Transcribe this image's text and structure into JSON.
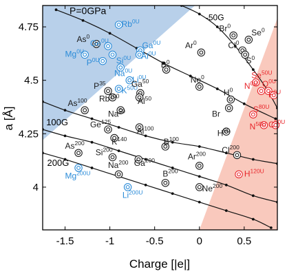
{
  "chart_data": {
    "type": "scatter",
    "xlabel": "Charge [|e|]",
    "ylabel_main": "a",
    "ylabel_unit": "[Å]",
    "xlim": [
      -1.75,
      0.87
    ],
    "ylim": [
      3.8,
      4.85
    ],
    "xticks": [
      -1.5,
      -1,
      -0.5,
      0,
      0.5
    ],
    "xtick_labels": [
      "-1.5",
      "-1",
      "-0.5",
      "0",
      "0.5"
    ],
    "yticks": [
      4,
      4.25,
      4.5,
      4.75
    ],
    "ytick_labels": [
      "4",
      "4.25",
      "4.5",
      "4.75"
    ],
    "colors": {
      "black": "#1a1a1a",
      "blue": "#2a8bd8",
      "red": "#e8252a",
      "blue_region": "#b8d0ea",
      "red_region": "#f9c9bd"
    },
    "isobars": [
      {
        "name": "P=0GPa",
        "points": [
          [
            -1.6,
            4.83
          ],
          [
            -1.3,
            4.78
          ],
          [
            -1,
            4.72
          ],
          [
            -0.7,
            4.65
          ],
          [
            -0.4,
            4.58
          ],
          [
            -0.1,
            4.52
          ],
          [
            0.2,
            4.46
          ],
          [
            0.5,
            4.39
          ],
          [
            0.85,
            4.32
          ]
        ]
      },
      {
        "name": "-50G",
        "points": [
          [
            -0.2,
            4.85
          ],
          [
            0,
            4.81
          ],
          [
            0.2,
            4.75
          ],
          [
            0.4,
            4.66
          ],
          [
            0.6,
            4.55
          ],
          [
            0.75,
            4.46
          ],
          [
            0.87,
            4.37
          ]
        ]
      },
      {
        "name": "100G",
        "points": [
          [
            -1.75,
            4.4
          ],
          [
            -1.5,
            4.36
          ],
          [
            -1.2,
            4.32
          ],
          [
            -0.9,
            4.28
          ],
          [
            -0.6,
            4.24
          ],
          [
            -0.3,
            4.21
          ],
          [
            0,
            4.19
          ],
          [
            0.3,
            4.16
          ],
          [
            0.6,
            4.13
          ],
          [
            0.87,
            4.11
          ]
        ]
      },
      {
        "name": "",
        "points": [
          [
            -1.75,
            4.27
          ],
          [
            -1.5,
            4.24
          ],
          [
            -1.2,
            4.21
          ],
          [
            -0.9,
            4.17
          ],
          [
            -0.6,
            4.13
          ],
          [
            -0.3,
            4.09
          ],
          [
            0,
            4.05
          ],
          [
            0.3,
            4.01
          ],
          [
            0.6,
            3.96
          ],
          [
            0.87,
            3.93
          ]
        ]
      },
      {
        "name": "200G",
        "points": [
          [
            -1.75,
            4.16
          ],
          [
            -1.5,
            4.13
          ],
          [
            -1.2,
            4.09
          ],
          [
            -0.9,
            4.05
          ],
          [
            -0.6,
            4.01
          ],
          [
            -0.3,
            3.97
          ],
          [
            0,
            3.93
          ],
          [
            0.3,
            3.89
          ],
          [
            0.6,
            3.85
          ],
          [
            0.8,
            3.81
          ]
        ]
      }
    ],
    "curve_labels": [
      {
        "text": "P=0GPa",
        "x": -1.45,
        "y": 4.81,
        "size": 14
      },
      {
        "text": "-50G",
        "x": 0.07,
        "y": 4.78,
        "size": 12
      },
      {
        "text": "100G",
        "x": -1.71,
        "y": 4.29,
        "size": 13
      },
      {
        "text": "200G",
        "x": -1.7,
        "y": 4.1,
        "size": 13
      }
    ],
    "points": [
      {
        "element": "Rb",
        "sup": "0U",
        "x": -0.9,
        "y": 4.76,
        "color": "blue",
        "lx": -0.87,
        "ly": 4.75
      },
      {
        "element": "As",
        "sup": "0",
        "x": -1.15,
        "y": 4.67,
        "color": "black",
        "lx": -1.37,
        "ly": 4.68
      },
      {
        "element": "Ge",
        "sup": "0U",
        "x": -1.02,
        "y": 4.66,
        "color": "blue",
        "lx": -1.22,
        "ly": 4.66
      },
      {
        "element": "Ga",
        "sup": "0U",
        "x": -0.66,
        "y": 4.64,
        "color": "blue",
        "lx": -0.64,
        "ly": 4.65
      },
      {
        "element": "Mg",
        "sup": "0U",
        "x": -1.28,
        "y": 4.62,
        "color": "blue",
        "lx": -1.5,
        "ly": 4.61
      },
      {
        "element": "Si",
        "sup": "0U",
        "x": -0.97,
        "y": 4.62,
        "color": "blue",
        "lx": -0.93,
        "ly": 4.58
      },
      {
        "element": "Al",
        "sup": "0U",
        "x": -0.67,
        "y": 4.62,
        "color": "blue",
        "lx": -0.65,
        "ly": 4.6
      },
      {
        "element": "P",
        "sup": "0U",
        "x": -1.08,
        "y": 4.59,
        "color": "blue",
        "lx": -1.26,
        "ly": 4.57
      },
      {
        "element": "Na",
        "sup": "0U",
        "x": -0.88,
        "y": 4.56,
        "color": "blue",
        "lx": -0.95,
        "ly": 4.52
      },
      {
        "element": "Li",
        "sup": "0U",
        "x": -0.78,
        "y": 4.5,
        "color": "blue",
        "lx": -0.75,
        "ly": 4.49
      },
      {
        "element": "K",
        "sup": "50U",
        "x": -0.9,
        "y": 4.46,
        "color": "blue",
        "lx": -0.87,
        "ly": 4.44
      },
      {
        "element": "Br",
        "sup": "0",
        "x": 0.38,
        "y": 4.71,
        "color": "black",
        "lx": 0.22,
        "ly": 4.73
      },
      {
        "element": "Se",
        "sup": "0",
        "x": 0.55,
        "y": 4.69,
        "color": "black",
        "lx": 0.58,
        "ly": 4.71
      },
      {
        "element": "Cl",
        "sup": "0",
        "x": 0.48,
        "y": 4.64,
        "color": "black",
        "lx": 0.32,
        "ly": 4.65
      },
      {
        "element": "Ar",
        "sup": "0",
        "x": 0.02,
        "y": 4.63,
        "color": "black",
        "lx": -0.16,
        "ly": 4.65
      },
      {
        "element": "S",
        "sup": "0",
        "x": 0.51,
        "y": 4.62,
        "color": "black",
        "lx": 0.52,
        "ly": 4.58
      },
      {
        "element": "B",
        "sup": "0",
        "x": -0.37,
        "y": 4.55,
        "color": "black",
        "lx": -0.43,
        "ly": 4.56
      },
      {
        "element": "Ne",
        "sup": "0",
        "x": 0.0,
        "y": 4.47,
        "color": "black",
        "lx": -0.1,
        "ly": 4.49
      },
      {
        "element": "Ga",
        "sup": "50",
        "x": -0.66,
        "y": 4.44,
        "color": "black",
        "lx": -0.76,
        "ly": 4.47
      },
      {
        "element": "P",
        "sup": "35",
        "x": -1.02,
        "y": 4.45,
        "color": "black",
        "lx": -1.18,
        "ly": 4.46
      },
      {
        "element": "Rb",
        "sup": "100",
        "x": -0.97,
        "y": 4.42,
        "color": "black",
        "lx": -1.12,
        "ly": 4.4
      },
      {
        "element": "Al",
        "sup": "50",
        "x": -0.67,
        "y": 4.42,
        "color": "black",
        "lx": -0.69,
        "ly": 4.39
      },
      {
        "element": "As",
        "sup": "100",
        "x": -1.28,
        "y": 4.36,
        "color": "black",
        "lx": -1.47,
        "ly": 4.38
      },
      {
        "element": "Na",
        "sup": "50",
        "x": -0.88,
        "y": 4.36,
        "color": "black",
        "lx": -1.02,
        "ly": 4.33
      },
      {
        "element": "H",
        "sup": "0",
        "x": 0.35,
        "y": 4.41,
        "color": "black",
        "lx": 0.27,
        "ly": 4.43
      },
      {
        "element": "Br",
        "sup": "",
        "x": 0.33,
        "y": 4.37,
        "color": "black",
        "lx": 0.14,
        "ly": 4.33
      },
      {
        "element": "Ge",
        "sup": "125",
        "x": -1.02,
        "y": 4.27,
        "color": "black",
        "lx": -1.22,
        "ly": 4.28
      },
      {
        "element": "K",
        "sup": "140",
        "x": -0.95,
        "y": 4.23,
        "color": "black",
        "lx": -0.98,
        "ly": 4.2
      },
      {
        "element": "Al",
        "sup": "100",
        "x": -0.67,
        "y": 4.28,
        "color": "black",
        "lx": -0.7,
        "ly": 4.25
      },
      {
        "element": "H",
        "sup": "50",
        "x": 0.3,
        "y": 4.26,
        "color": "black",
        "lx": 0.2,
        "ly": 4.24
      },
      {
        "element": "As",
        "sup": "200",
        "x": -1.35,
        "y": 4.16,
        "color": "black",
        "lx": -1.5,
        "ly": 4.18
      },
      {
        "element": "Si",
        "sup": "200",
        "x": -0.97,
        "y": 4.14,
        "color": "black",
        "lx": -1.16,
        "ly": 4.15
      },
      {
        "element": "B",
        "sup": "100",
        "x": -0.38,
        "y": 4.19,
        "color": "black",
        "lx": -0.4,
        "ly": 4.2
      },
      {
        "element": "Ga",
        "sup": "200",
        "x": -0.68,
        "y": 4.13,
        "color": "black",
        "lx": -0.73,
        "ly": 4.1
      },
      {
        "element": "Na",
        "sup": "200",
        "x": -0.9,
        "y": 4.06,
        "color": "black",
        "lx": -1.02,
        "ly": 4.09
      },
      {
        "element": "Cl",
        "sup": "200",
        "x": 0.42,
        "y": 4.15,
        "color": "black",
        "lx": 0.25,
        "ly": 4.16
      },
      {
        "element": "Ar",
        "sup": "200",
        "x": 0.0,
        "y": 4.1,
        "color": "black",
        "lx": -0.13,
        "ly": 4.13
      },
      {
        "element": "B",
        "sup": "200",
        "x": -0.38,
        "y": 4.02,
        "color": "black",
        "lx": -0.41,
        "ly": 4.05
      },
      {
        "element": "Ne",
        "sup": "200",
        "x": 0.0,
        "y": 4.0,
        "color": "black",
        "lx": 0.03,
        "ly": 3.98
      },
      {
        "element": "Mg",
        "sup": "200U",
        "x": -1.35,
        "y": 4.09,
        "color": "blue",
        "lx": -1.5,
        "ly": 4.04
      },
      {
        "element": "Li",
        "sup": "200U",
        "x": -0.8,
        "y": 4.0,
        "color": "blue",
        "lx": -0.86,
        "ly": 3.95
      },
      {
        "element": "Se",
        "sup": "50U",
        "x": 0.63,
        "y": 4.49,
        "color": "red",
        "lx": 0.58,
        "ly": 4.51
      },
      {
        "element": "N",
        "sup": "0U",
        "x": 0.69,
        "y": 4.45,
        "color": "red",
        "lx": 0.5,
        "ly": 4.46
      },
      {
        "element": "O",
        "sup": "0U",
        "x": 0.77,
        "y": 4.45,
        "color": "red",
        "lx": 0.7,
        "ly": 4.47
      },
      {
        "element": "F",
        "sup": "0U",
        "x": 0.83,
        "y": 4.43,
        "color": "red",
        "lx": 0.77,
        "ly": 4.42
      },
      {
        "element": "S",
        "sup": "80U",
        "x": 0.6,
        "y": 4.34,
        "color": "red",
        "lx": 0.6,
        "ly": 4.35
      },
      {
        "element": "N",
        "sup": "50U",
        "x": 0.72,
        "y": 4.29,
        "color": "red",
        "lx": 0.56,
        "ly": 4.27
      },
      {
        "element": "C",
        "sup": "50U",
        "x": 0.85,
        "y": 4.29,
        "color": "red",
        "lx": 0.77,
        "ly": 4.28
      },
      {
        "element": "H",
        "sup": "120U",
        "x": 0.44,
        "y": 4.06,
        "color": "red",
        "lx": 0.5,
        "ly": 4.05
      }
    ],
    "blue_region": [
      [
        -1.75,
        4.85
      ],
      [
        -0.05,
        4.85
      ],
      [
        -1.75,
        4.22
      ]
    ],
    "red_region": [
      [
        0.0,
        3.8
      ],
      [
        0.87,
        3.8
      ],
      [
        0.87,
        4.79
      ]
    ],
    "grid": false,
    "legend": "none"
  }
}
